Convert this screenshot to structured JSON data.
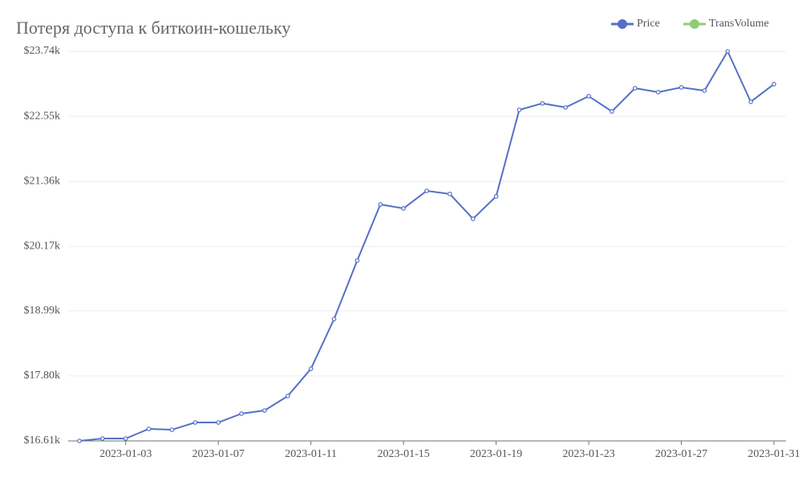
{
  "chart_data": {
    "type": "line",
    "title": "Потеря доступа к биткоин-кошельку",
    "categories": [
      null,
      null,
      "2023-01-03",
      null,
      null,
      null,
      "2023-01-07",
      null,
      null,
      null,
      "2023-01-11",
      null,
      null,
      null,
      "2023-01-15",
      null,
      null,
      null,
      "2023-01-19",
      null,
      null,
      null,
      "2023-01-23",
      null,
      null,
      null,
      "2023-01-27",
      null,
      null,
      null,
      "2023-01-31"
    ],
    "series": [
      {
        "name": "Price",
        "color": "#5470c6",
        "values": [
          16610,
          16654,
          16654,
          16830,
          16815,
          16947,
          16947,
          17109,
          17167,
          17432,
          17930,
          18840,
          19911,
          20938,
          20865,
          21187,
          21129,
          20674,
          21085,
          22669,
          22787,
          22713,
          22919,
          22640,
          23065,
          22992,
          23080,
          23021,
          23740,
          22816,
          23139
        ]
      },
      {
        "name": "TransVolume",
        "color": "#91cc75",
        "values": [
          null,
          null,
          null,
          null,
          null,
          null,
          null,
          null,
          null,
          null,
          null,
          null,
          null,
          null,
          null,
          null,
          null,
          null,
          null,
          null,
          null,
          null,
          null,
          null,
          null,
          null,
          null,
          null,
          null,
          null,
          null
        ]
      }
    ],
    "ylim": [
      16610,
      23740
    ],
    "yticks": [
      {
        "value": 16610,
        "label": "$16.61k"
      },
      {
        "value": 17800,
        "label": "$17.80k"
      },
      {
        "value": 18990,
        "label": "$18.99k"
      },
      {
        "value": 20170,
        "label": "$20.17k"
      },
      {
        "value": 21360,
        "label": "$21.36k"
      },
      {
        "value": 22550,
        "label": "$22.55k"
      },
      {
        "value": 23740,
        "label": "$23.74k"
      }
    ],
    "grid": true,
    "legend": "top-right"
  }
}
